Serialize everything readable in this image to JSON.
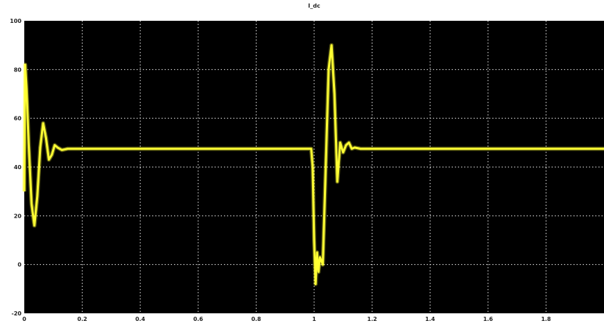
{
  "chart_data": {
    "type": "line",
    "title": "I_dc",
    "xlabel": "",
    "ylabel": "",
    "xlim": [
      0,
      2
    ],
    "ylim": [
      -20,
      100
    ],
    "grid": true,
    "background_color": "#000000",
    "grid_color": "#ffffff",
    "x_ticks": [
      "0",
      "0.2",
      "0.4",
      "0.6",
      "0.8",
      "1",
      "1.2",
      "1.4",
      "1.6",
      "1.8"
    ],
    "y_ticks": [
      "100",
      "80",
      "60",
      "40",
      "20",
      "0",
      "-20"
    ],
    "x_tick_values": [
      0,
      0.2,
      0.4,
      0.6,
      0.8,
      1.0,
      1.2,
      1.4,
      1.6,
      1.8
    ],
    "y_tick_values": [
      100,
      80,
      60,
      40,
      20,
      0,
      -20
    ],
    "series": [
      {
        "color": "#ffff33",
        "x": [
          0.0,
          0.003,
          0.008,
          0.015,
          0.025,
          0.035,
          0.045,
          0.055,
          0.065,
          0.075,
          0.085,
          0.095,
          0.105,
          0.115,
          0.13,
          0.15,
          0.2,
          0.4,
          0.6,
          0.8,
          0.99,
          0.995,
          1.0,
          1.005,
          1.01,
          1.015,
          1.02,
          1.03,
          1.04,
          1.05,
          1.06,
          1.07,
          1.08,
          1.09,
          1.1,
          1.11,
          1.12,
          1.13,
          1.14,
          1.16,
          1.2,
          1.4,
          1.6,
          1.8,
          2.0
        ],
        "y": [
          30,
          82,
          72,
          50,
          25,
          16,
          28,
          48,
          58,
          52,
          43,
          45,
          49,
          48,
          47,
          47.5,
          47.5,
          47.5,
          47.5,
          47.5,
          47.5,
          40,
          10,
          -8,
          5,
          -3,
          3,
          0,
          40,
          80,
          90,
          70,
          34,
          50,
          46,
          49,
          50,
          47.5,
          48,
          47.5,
          47.5,
          47.5,
          47.5,
          47.5,
          47.5
        ]
      }
    ]
  }
}
